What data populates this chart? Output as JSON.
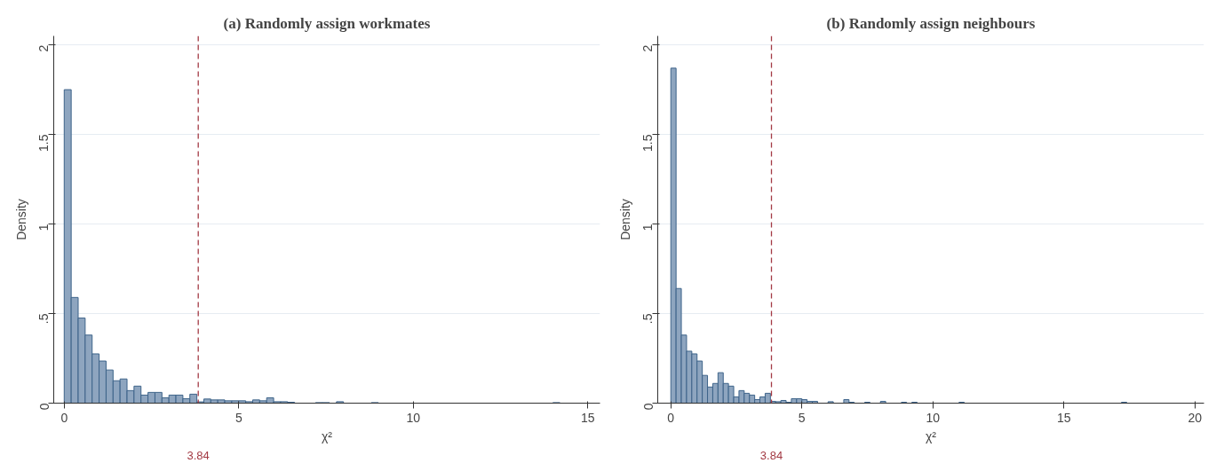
{
  "chart_data": [
    {
      "type": "histogram",
      "title": "(a) Randomly assign workmates",
      "xlabel": "χ²",
      "ylabel": "Density",
      "color": "#8ea5bf",
      "bins": [
        0,
        0.2,
        0.4,
        0.6,
        0.8,
        1.0,
        1.2,
        1.4,
        1.6,
        1.8,
        2.0,
        2.2,
        2.4,
        2.6,
        2.8,
        3.0,
        3.2,
        3.4,
        3.6,
        3.8,
        4.0,
        4.2,
        4.4,
        4.6,
        4.8,
        5.0,
        5.2,
        5.4,
        5.6,
        5.8,
        6.0,
        6.2,
        6.4,
        6.6,
        6.8,
        7.0,
        7.2,
        7.4,
        7.6,
        7.8,
        8.0,
        8.2,
        8.4,
        8.6,
        8.8,
        9.0,
        9.2,
        9.4,
        9.6,
        9.8,
        10.0,
        10.2,
        10.4,
        10.6,
        10.8,
        11.0,
        11.2,
        11.4,
        11.6,
        11.8,
        12.0,
        12.2,
        12.4,
        12.6,
        12.8,
        13.0,
        13.2,
        13.4,
        13.6,
        13.8,
        14.0,
        14.2
      ],
      "values": [
        1.75,
        0.59,
        0.475,
        0.38,
        0.275,
        0.235,
        0.185,
        0.125,
        0.135,
        0.07,
        0.095,
        0.045,
        0.06,
        0.06,
        0.03,
        0.045,
        0.045,
        0.025,
        0.05,
        0.007,
        0.023,
        0.018,
        0.018,
        0.013,
        0.013,
        0.013,
        0.008,
        0.018,
        0.013,
        0.03,
        0.008,
        0.008,
        0.005,
        0,
        0,
        0,
        0.003,
        0.003,
        0,
        0.008,
        0,
        0,
        0,
        0,
        0.003,
        0,
        0,
        0,
        0,
        0,
        0,
        0,
        0,
        0,
        0,
        0,
        0,
        0,
        0,
        0,
        0,
        0,
        0,
        0,
        0,
        0,
        0,
        0,
        0,
        0,
        0.003
      ],
      "xlim": [
        -0.3,
        15.35
      ],
      "ylim": [
        0,
        2.05
      ],
      "xticks": [
        0,
        5,
        10,
        15
      ],
      "yticks": [
        0,
        {
          "value": 0.5,
          "label": ".5"
        },
        1,
        1.5,
        2
      ],
      "grid": "y",
      "ref_lines": [
        {
          "axis": "x",
          "value": 3.84,
          "label": "3.84",
          "color": "#a33a44",
          "line_style": "dashed"
        }
      ]
    },
    {
      "type": "histogram",
      "title": "(b) Randomly assign neighbours",
      "xlabel": "χ²",
      "ylabel": "Density",
      "color": "#8ea5bf",
      "bins": [
        0,
        0.2,
        0.4,
        0.6,
        0.8,
        1.0,
        1.2,
        1.4,
        1.6,
        1.8,
        2.0,
        2.2,
        2.4,
        2.6,
        2.8,
        3.0,
        3.2,
        3.4,
        3.6,
        3.8,
        4.0,
        4.2,
        4.4,
        4.6,
        4.8,
        5.0,
        5.2,
        5.4,
        5.6,
        5.8,
        6.0,
        6.2,
        6.4,
        6.6,
        6.8,
        7.0,
        7.2,
        7.4,
        7.6,
        7.8,
        8.0,
        8.2,
        8.4,
        8.6,
        8.8,
        9.0,
        9.2,
        9.4,
        9.6,
        9.8,
        10.0,
        10.2,
        10.4,
        10.6,
        10.8,
        11.0,
        11.2,
        11.4,
        11.6,
        11.8,
        12.0,
        12.2,
        12.4,
        12.6,
        12.8,
        13.0,
        13.2,
        13.4,
        13.6,
        13.8,
        14.0,
        14.2,
        14.4,
        14.6,
        14.8,
        15.0,
        15.2,
        15.4,
        15.6,
        15.8,
        16.0,
        16.2,
        16.4,
        16.6,
        16.8,
        17.0,
        17.2,
        17.4
      ],
      "values": [
        1.87,
        0.64,
        0.38,
        0.29,
        0.275,
        0.235,
        0.155,
        0.09,
        0.11,
        0.17,
        0.11,
        0.095,
        0.035,
        0.07,
        0.055,
        0.045,
        0.02,
        0.035,
        0.055,
        0.01,
        0.008,
        0.015,
        0.005,
        0.025,
        0.025,
        0.02,
        0.01,
        0.01,
        0,
        0,
        0.008,
        0,
        0,
        0.02,
        0.005,
        0,
        0,
        0.005,
        0,
        0,
        0.01,
        0,
        0,
        0,
        0.005,
        0,
        0.005,
        0,
        0,
        0,
        0,
        0,
        0,
        0,
        0,
        0.005,
        0,
        0,
        0,
        0,
        0,
        0,
        0,
        0,
        0,
        0,
        0,
        0,
        0,
        0,
        0,
        0,
        0,
        0,
        0,
        0,
        0,
        0,
        0,
        0,
        0,
        0,
        0,
        0,
        0,
        0,
        0.005
      ],
      "xlim": [
        -0.5,
        20.35
      ],
      "ylim": [
        0,
        2.05
      ],
      "xticks": [
        0,
        5,
        10,
        15,
        20
      ],
      "yticks": [
        0,
        {
          "value": 0.5,
          "label": ".5"
        },
        1,
        1.5,
        2
      ],
      "grid": "y",
      "ref_lines": [
        {
          "axis": "x",
          "value": 3.84,
          "label": "3.84",
          "color": "#a33a44",
          "line_style": "dashed"
        }
      ]
    }
  ]
}
